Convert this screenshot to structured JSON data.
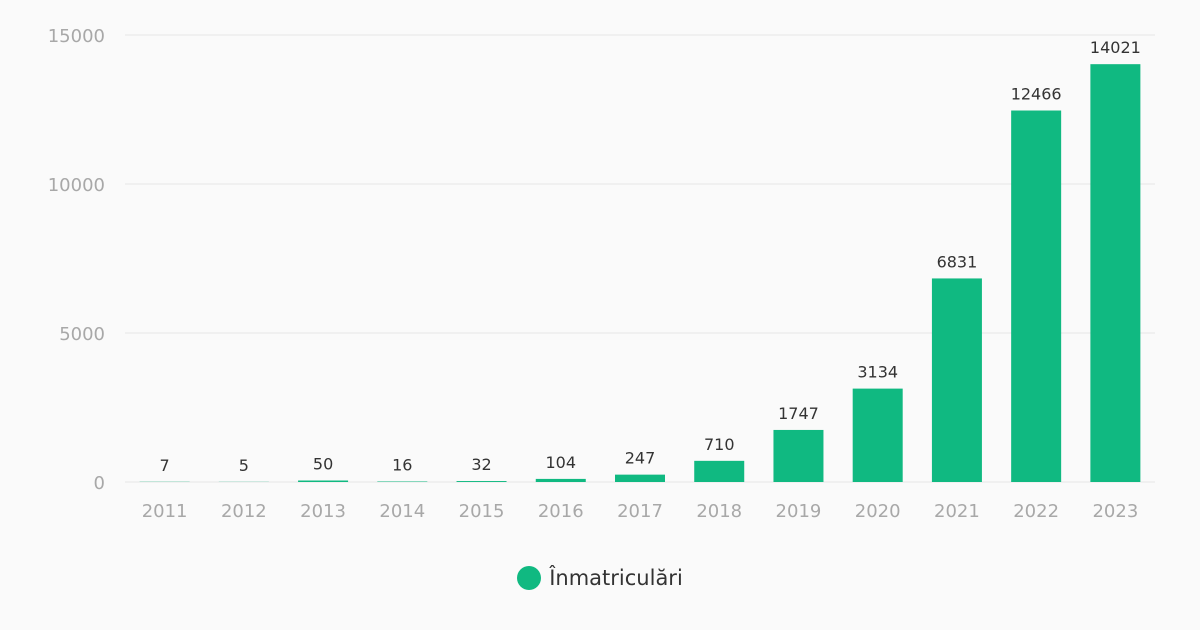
{
  "chart_data": {
    "type": "bar",
    "categories": [
      "2011",
      "2012",
      "2013",
      "2014",
      "2015",
      "2016",
      "2017",
      "2018",
      "2019",
      "2020",
      "2021",
      "2022",
      "2023"
    ],
    "series": [
      {
        "name": "Înmatriculări",
        "values": [
          7,
          5,
          50,
          16,
          32,
          104,
          247,
          710,
          1747,
          3134,
          6831,
          12466,
          14021
        ]
      }
    ],
    "ylim": [
      0,
      15000
    ],
    "yticks": [
      0,
      5000,
      10000,
      15000
    ],
    "title": "",
    "xlabel": "",
    "ylabel": "",
    "grid": true,
    "legend_position": "bottom",
    "data_labels": true,
    "colors": {
      "bar": "#10b981",
      "grid": "#ececec",
      "tick_text": "#a8a8a8",
      "label_text": "#333333"
    }
  }
}
